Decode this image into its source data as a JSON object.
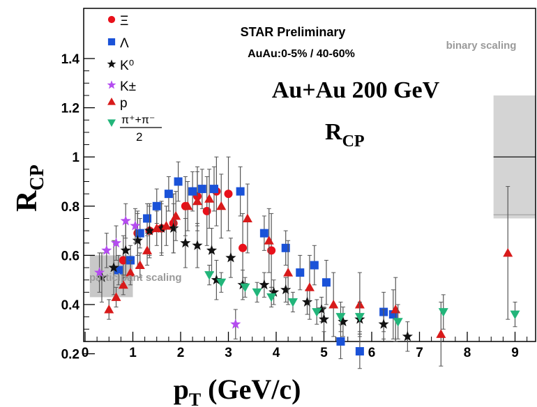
{
  "chart_data": {
    "type": "scatter",
    "xlabel": "p",
    "xlabel_sub": "T",
    "xlabel_unit": " (GeV/c)",
    "ylabel": "R",
    "ylabel_sub": "CP",
    "xlim": [
      0,
      9.3
    ],
    "ylim": [
      0.08,
      1.45
    ],
    "xticks": [
      "0",
      "1",
      "2",
      "3",
      "4",
      "5",
      "6",
      "7",
      "8",
      "9"
    ],
    "yticks": [
      "0.2",
      "0.4",
      "0.6",
      "0.8",
      "1",
      "1.2",
      "1.4"
    ],
    "annotations": {
      "star": "STAR Preliminary",
      "centrality": "AuAu:0-5% / 40-60%",
      "system": "Au+Au 200 GeV",
      "rcp": "R",
      "rcp_sub": "CP",
      "binary": "binary scaling",
      "participant": "participant scaling"
    },
    "bands": {
      "binary": {
        "x": [
          8.55,
          9.5
        ],
        "y": [
          0.75,
          1.25
        ],
        "line": 1.0
      },
      "participant": {
        "x": [
          0.1,
          1.0
        ],
        "y": [
          0.43,
          0.6
        ],
        "line": 0.52
      }
    },
    "series": [
      {
        "name": "Ξ",
        "marker": "circle",
        "color": "#e8101a",
        "points": [
          [
            0.8,
            0.58,
            0.1
          ],
          [
            1.1,
            0.69,
            0.09
          ],
          [
            1.35,
            0.7,
            0.1
          ],
          [
            1.6,
            0.71,
            0.1
          ],
          [
            1.85,
            0.73,
            0.12
          ],
          [
            2.1,
            0.8,
            0.12
          ],
          [
            2.35,
            0.84,
            0.12
          ],
          [
            2.55,
            0.78,
            0.14
          ],
          [
            2.75,
            0.86,
            0.14
          ],
          [
            3.0,
            0.85,
            0.15
          ],
          [
            3.3,
            0.63,
            0.14
          ],
          [
            3.9,
            0.62,
            0.15
          ]
        ]
      },
      {
        "name": "Λ",
        "marker": "square",
        "color": "#1a52d8",
        "points": [
          [
            0.7,
            0.54,
            0.06
          ],
          [
            0.95,
            0.58,
            0.06
          ],
          [
            1.15,
            0.69,
            0.06
          ],
          [
            1.3,
            0.75,
            0.06
          ],
          [
            1.5,
            0.8,
            0.07
          ],
          [
            1.75,
            0.85,
            0.07
          ],
          [
            1.95,
            0.9,
            0.08
          ],
          [
            2.25,
            0.86,
            0.08
          ],
          [
            2.45,
            0.87,
            0.08
          ],
          [
            2.7,
            0.87,
            0.09
          ],
          [
            3.25,
            0.86,
            0.1
          ],
          [
            3.75,
            0.69,
            0.07
          ],
          [
            4.2,
            0.63,
            0.07
          ],
          [
            4.5,
            0.53,
            0.07
          ],
          [
            4.8,
            0.56,
            0.08
          ],
          [
            5.05,
            0.49,
            0.09
          ],
          [
            5.35,
            0.25,
            0.07
          ],
          [
            5.75,
            0.21,
            0.07
          ],
          [
            6.25,
            0.37,
            0.08
          ],
          [
            6.45,
            0.36,
            0.1
          ]
        ]
      },
      {
        "name": "K⁰",
        "marker": "star",
        "color": "#111111",
        "points": [
          [
            0.35,
            0.51,
            0.1
          ],
          [
            0.6,
            0.55,
            0.11
          ],
          [
            0.85,
            0.62,
            0.11
          ],
          [
            1.1,
            0.66,
            0.11
          ],
          [
            1.35,
            0.7,
            0.11
          ],
          [
            1.6,
            0.71,
            0.11
          ],
          [
            1.85,
            0.71,
            0.1
          ],
          [
            2.1,
            0.65,
            0.1
          ],
          [
            2.35,
            0.64,
            0.09
          ],
          [
            2.65,
            0.62,
            0.09
          ],
          [
            2.75,
            0.5,
            0.08
          ],
          [
            3.05,
            0.59,
            0.08
          ],
          [
            3.3,
            0.48,
            0.06
          ],
          [
            3.75,
            0.48,
            0.05
          ],
          [
            3.95,
            0.45,
            0.05
          ],
          [
            4.2,
            0.46,
            0.05
          ],
          [
            4.65,
            0.41,
            0.05
          ],
          [
            4.95,
            0.38,
            0.05
          ],
          [
            5.0,
            0.34,
            0.05
          ],
          [
            5.4,
            0.33,
            0.06
          ],
          [
            5.75,
            0.34,
            0.06
          ],
          [
            6.25,
            0.32,
            0.06
          ],
          [
            6.75,
            0.27,
            0.06
          ]
        ]
      },
      {
        "name": "K±",
        "marker": "star",
        "color": "#b44cf0",
        "points": [
          [
            0.3,
            0.53,
            0.08
          ],
          [
            0.45,
            0.62,
            0.07
          ],
          [
            0.65,
            0.65,
            0.07
          ],
          [
            0.85,
            0.74,
            0.07
          ],
          [
            1.05,
            0.72,
            0.07
          ],
          [
            3.15,
            0.32,
            0.06
          ]
        ]
      },
      {
        "name": "p",
        "marker": "triangle-up",
        "color": "#d81a1a",
        "points": [
          [
            0.5,
            0.38,
            0.04
          ],
          [
            0.65,
            0.43,
            0.04
          ],
          [
            0.8,
            0.48,
            0.04
          ],
          [
            0.95,
            0.53,
            0.05
          ],
          [
            1.15,
            0.56,
            0.05
          ],
          [
            1.3,
            0.62,
            0.06
          ],
          [
            1.5,
            0.71,
            0.07
          ],
          [
            1.7,
            0.72,
            0.08
          ],
          [
            1.9,
            0.76,
            0.1
          ],
          [
            2.15,
            0.8,
            0.1
          ],
          [
            2.35,
            0.82,
            0.12
          ],
          [
            2.6,
            0.83,
            0.12
          ],
          [
            2.85,
            0.8,
            0.13
          ],
          [
            3.4,
            0.75,
            0.14
          ],
          [
            3.85,
            0.66,
            0.13
          ],
          [
            4.25,
            0.53,
            0.13
          ],
          [
            4.7,
            0.47,
            0.13
          ],
          [
            5.2,
            0.4,
            0.13
          ],
          [
            5.75,
            0.4,
            0.13
          ],
          [
            6.5,
            0.38,
            0.13
          ],
          [
            7.45,
            0.28,
            0.13
          ],
          [
            8.85,
            0.61,
            0.27
          ]
        ]
      },
      {
        "name": "(π⁺+π⁻)/2",
        "marker": "triangle-down",
        "color": "#22b57a",
        "points": [
          [
            2.6,
            0.52,
            0.04
          ],
          [
            2.85,
            0.49,
            0.04
          ],
          [
            3.35,
            0.47,
            0.04
          ],
          [
            3.6,
            0.45,
            0.04
          ],
          [
            3.9,
            0.43,
            0.04
          ],
          [
            4.35,
            0.41,
            0.04
          ],
          [
            4.85,
            0.37,
            0.05
          ],
          [
            5.35,
            0.35,
            0.06
          ],
          [
            5.75,
            0.35,
            0.06
          ],
          [
            6.55,
            0.33,
            0.07
          ],
          [
            7.5,
            0.37,
            0.07
          ],
          [
            9.0,
            0.36,
            0.05
          ]
        ]
      }
    ]
  }
}
